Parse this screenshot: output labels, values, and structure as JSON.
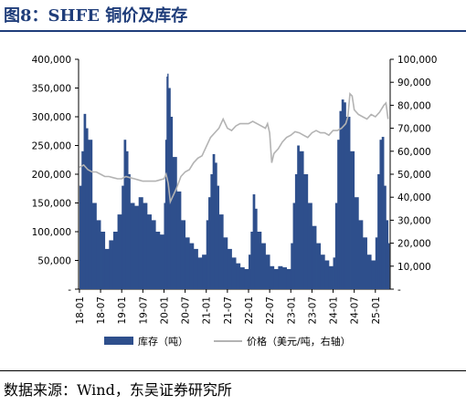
{
  "figure": {
    "title": "图8：SHFE 铜价及库存",
    "source": "数据来源：Wind，东吴证券研究所"
  },
  "chart_data": {
    "type": "bar+line",
    "x_tick_labels": [
      "18-01",
      "18-07",
      "19-01",
      "19-07",
      "20-01",
      "20-07",
      "21-01",
      "21-07",
      "22-01",
      "22-07",
      "23-01",
      "23-07",
      "24-01",
      "24-07",
      "25-01"
    ],
    "left_axis": {
      "ticks": [
        "-",
        "50,000",
        "100,000",
        "150,000",
        "200,000",
        "250,000",
        "300,000",
        "350,000",
        "400,000"
      ],
      "ylim": [
        0,
        400000
      ]
    },
    "right_axis": {
      "ticks": [
        "-",
        "10,000",
        "20,000",
        "30,000",
        "40,000",
        "50,000",
        "60,000",
        "70,000",
        "80,000",
        "90,000",
        "100,000"
      ],
      "ylim": [
        0,
        100000
      ]
    },
    "grid": false,
    "legend_position": "bottom",
    "series": [
      {
        "name": "库存（吨）",
        "kind": "bar",
        "axis": "left",
        "color": "#2e4f8c",
        "x": [
          2018.0,
          2018.05,
          2018.1,
          2018.15,
          2018.2,
          2018.3,
          2018.4,
          2018.5,
          2018.6,
          2018.7,
          2018.8,
          2018.9,
          2019.0,
          2019.05,
          2019.1,
          2019.15,
          2019.2,
          2019.3,
          2019.4,
          2019.5,
          2019.6,
          2019.7,
          2019.8,
          2019.9,
          2020.0,
          2020.03,
          2020.06,
          2020.08,
          2020.1,
          2020.15,
          2020.2,
          2020.3,
          2020.4,
          2020.5,
          2020.6,
          2020.7,
          2020.8,
          2020.9,
          2021.0,
          2021.05,
          2021.1,
          2021.15,
          2021.2,
          2021.25,
          2021.3,
          2021.4,
          2021.5,
          2021.6,
          2021.7,
          2021.8,
          2021.9,
          2022.0,
          2022.05,
          2022.1,
          2022.15,
          2022.2,
          2022.3,
          2022.4,
          2022.5,
          2022.6,
          2022.7,
          2022.8,
          2022.9,
          2023.0,
          2023.05,
          2023.1,
          2023.15,
          2023.2,
          2023.3,
          2023.4,
          2023.5,
          2023.6,
          2023.7,
          2023.8,
          2023.9,
          2024.0,
          2024.05,
          2024.1,
          2024.15,
          2024.2,
          2024.25,
          2024.3,
          2024.4,
          2024.5,
          2024.6,
          2024.7,
          2024.8,
          2024.9,
          2025.0,
          2025.05,
          2025.1,
          2025.15,
          2025.2,
          2025.25,
          2025.3
        ],
        "values": [
          180000,
          240000,
          305000,
          280000,
          260000,
          150000,
          120000,
          100000,
          70000,
          85000,
          100000,
          130000,
          180000,
          260000,
          240000,
          200000,
          150000,
          145000,
          160000,
          150000,
          130000,
          120000,
          100000,
          95000,
          150000,
          260000,
          370000,
          375000,
          350000,
          300000,
          230000,
          170000,
          120000,
          90000,
          80000,
          70000,
          55000,
          60000,
          120000,
          160000,
          200000,
          235000,
          220000,
          180000,
          130000,
          90000,
          70000,
          55000,
          45000,
          38000,
          35000,
          60000,
          100000,
          165000,
          140000,
          100000,
          80000,
          60000,
          40000,
          35000,
          40000,
          38000,
          35000,
          80000,
          150000,
          200000,
          250000,
          240000,
          200000,
          150000,
          110000,
          80000,
          60000,
          50000,
          40000,
          55000,
          150000,
          260000,
          310000,
          330000,
          325000,
          300000,
          240000,
          160000,
          120000,
          90000,
          60000,
          50000,
          90000,
          200000,
          260000,
          265000,
          180000,
          120000,
          80000
        ]
      },
      {
        "name": "价格（美元/吨，右轴）",
        "kind": "line",
        "axis": "right",
        "color": "#b3b3b3",
        "x": [
          2018.0,
          2018.1,
          2018.2,
          2018.3,
          2018.4,
          2018.5,
          2018.6,
          2018.7,
          2018.8,
          2018.9,
          2019.0,
          2019.1,
          2019.2,
          2019.3,
          2019.4,
          2019.5,
          2019.6,
          2019.7,
          2019.8,
          2019.9,
          2020.0,
          2020.05,
          2020.1,
          2020.15,
          2020.2,
          2020.25,
          2020.3,
          2020.4,
          2020.5,
          2020.6,
          2020.7,
          2020.8,
          2020.9,
          2021.0,
          2021.1,
          2021.2,
          2021.3,
          2021.4,
          2021.5,
          2021.6,
          2021.7,
          2021.8,
          2021.9,
          2022.0,
          2022.1,
          2022.2,
          2022.3,
          2022.4,
          2022.45,
          2022.5,
          2022.55,
          2022.6,
          2022.7,
          2022.8,
          2022.9,
          2023.0,
          2023.1,
          2023.2,
          2023.3,
          2023.4,
          2023.5,
          2023.6,
          2023.7,
          2023.8,
          2023.9,
          2024.0,
          2024.1,
          2024.2,
          2024.3,
          2024.35,
          2024.4,
          2024.45,
          2024.5,
          2024.6,
          2024.7,
          2024.8,
          2024.9,
          2025.0,
          2025.1,
          2025.2,
          2025.25,
          2025.3
        ],
        "values": [
          53000,
          54000,
          52000,
          51000,
          51000,
          50000,
          49000,
          49000,
          48500,
          48000,
          48000,
          49000,
          48500,
          48000,
          47500,
          47000,
          47000,
          47000,
          47000,
          47500,
          48000,
          50000,
          46000,
          38000,
          40000,
          42000,
          44000,
          49000,
          51000,
          52000,
          55000,
          57000,
          58000,
          62000,
          66000,
          68000,
          70000,
          74000,
          70000,
          69000,
          71000,
          72000,
          72000,
          72000,
          73000,
          72000,
          71000,
          70000,
          72000,
          68000,
          55000,
          59000,
          61000,
          64000,
          66000,
          67000,
          68500,
          68000,
          67000,
          66000,
          68000,
          69000,
          68000,
          68000,
          67000,
          69000,
          69000,
          70000,
          72000,
          75000,
          85000,
          84000,
          78000,
          76000,
          75000,
          74000,
          76000,
          75000,
          77000,
          80000,
          81000,
          74000
        ]
      }
    ]
  }
}
